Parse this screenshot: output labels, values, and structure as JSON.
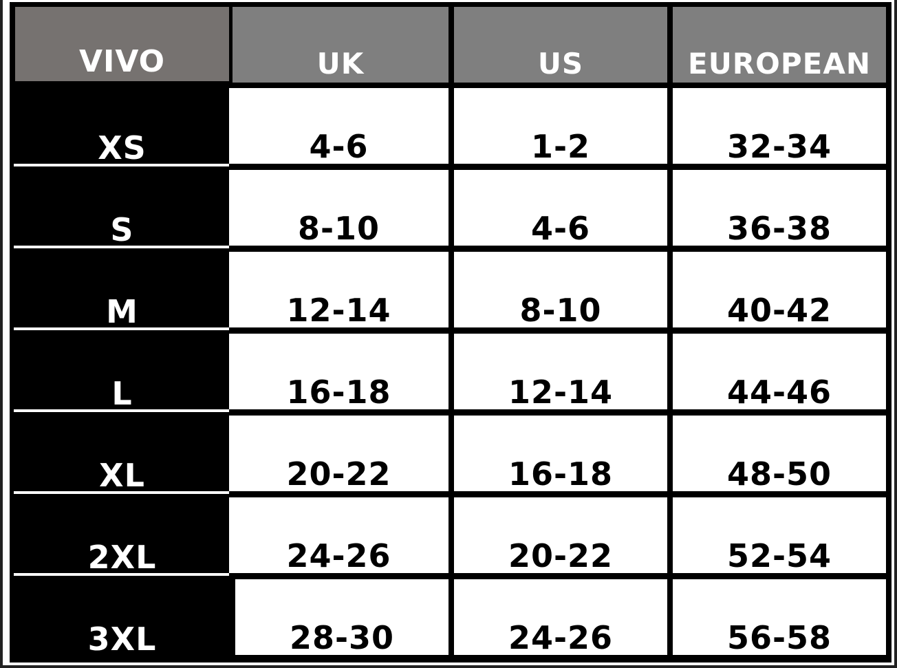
{
  "headers": [
    "VIVO",
    "UK",
    "US",
    "EUROPEAN"
  ],
  "header_colors": [
    "#767270",
    "#7f7f7f",
    "#7f7f7f",
    "#7f7f7f"
  ],
  "rows": [
    {
      "size": "XS",
      "uk": "4-6",
      "us": "1-2",
      "eu": "32-34"
    },
    {
      "size": "S",
      "uk": "8-10",
      "us": "4-6",
      "eu": "36-38"
    },
    {
      "size": "M",
      "uk": "12-14",
      "us": "8-10",
      "eu": "40-42"
    },
    {
      "size": "L",
      "uk": "16-18",
      "us": "12-14",
      "eu": "44-46"
    },
    {
      "size": "XL",
      "uk": "20-22",
      "us": "16-18",
      "eu": "48-50"
    },
    {
      "size": "2XL",
      "uk": "24-26",
      "us": "20-22",
      "eu": "52-54"
    },
    {
      "size": "3XL",
      "uk": "28-30",
      "us": "24-26",
      "eu": "56-58"
    }
  ]
}
